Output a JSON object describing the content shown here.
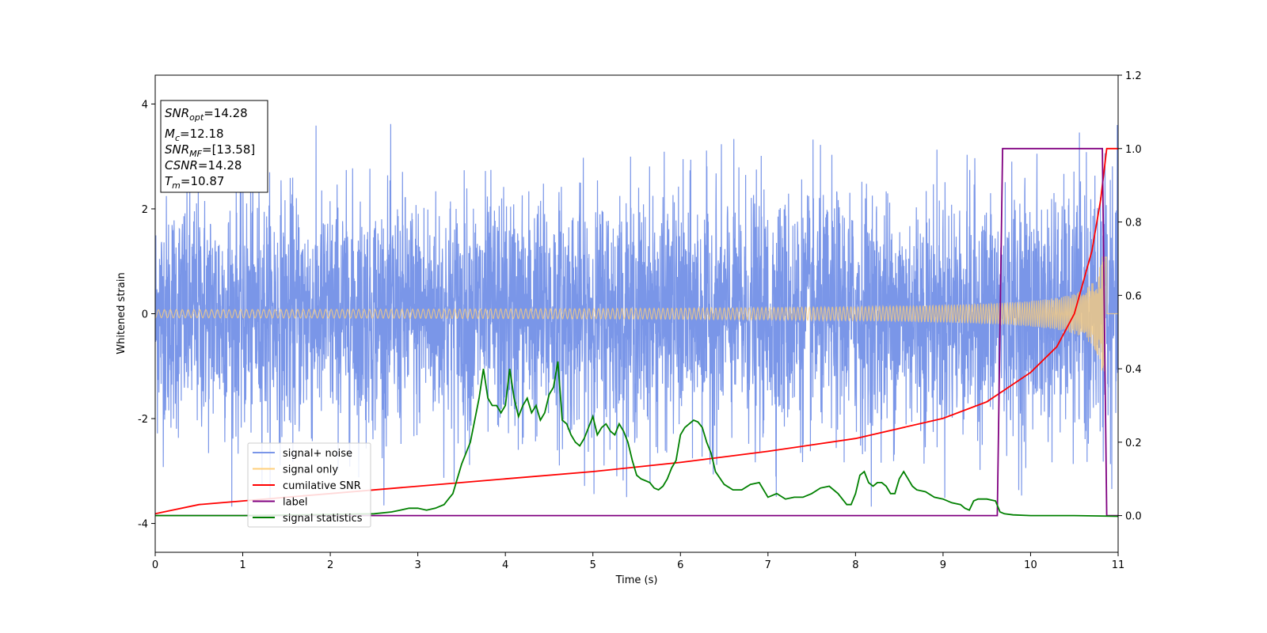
{
  "chart_data": {
    "type": "line",
    "xlabel": "Time (s)",
    "ylabel_left": "Whitened strain",
    "ylabel_right": "",
    "xlim": [
      0,
      11
    ],
    "ylim_left": [
      -4.55,
      4.55
    ],
    "ylim_right": [
      -0.1,
      1.2
    ],
    "x_ticks": [
      0,
      1,
      2,
      3,
      4,
      5,
      6,
      7,
      8,
      9,
      10,
      11
    ],
    "y_left_ticks": [
      -4,
      -2,
      0,
      2,
      4
    ],
    "y_right_ticks": [
      "0.0",
      "0.2",
      "0.4",
      "0.6",
      "0.8",
      "1.0",
      "1.2"
    ],
    "grid": false,
    "legend_position": "lower-left",
    "legend": [
      {
        "label": "signal+ noise",
        "color": "#7a96e8"
      },
      {
        "label": "signal only",
        "color": "#ffcf7a"
      },
      {
        "label": "cumilative SNR",
        "color": "#ff0000"
      },
      {
        "label": "label",
        "color": "#800080"
      },
      {
        "label": "signal statistics",
        "color": "#008000"
      }
    ],
    "annotation": {
      "snr_opt": {
        "base": "SNR",
        "sub": "opt",
        "value": "=14.28"
      },
      "mc": {
        "base": "M",
        "sub": "c",
        "value": "=12.18"
      },
      "snr_mf": {
        "base": "SNR",
        "sub": "MF",
        "value": "=[13.58]"
      },
      "csnr": {
        "base": "CSNR",
        "value": "=14.28"
      },
      "tm": {
        "base": "T",
        "sub": "m",
        "value": "=10.87"
      }
    },
    "series": [
      {
        "name": "signal+ noise",
        "axis": "left",
        "description": "noise band",
        "envelope": {
          "typical": 1.5,
          "peak": 3.6
        }
      },
      {
        "name": "signal only",
        "axis": "left",
        "description": "chirp",
        "amplitude_start": 0.03,
        "amplitude_end": 1.1,
        "merger_time": 10.87
      },
      {
        "name": "cumilative SNR",
        "axis": "right",
        "x": [
          0,
          0.5,
          1,
          2,
          3,
          4,
          5,
          6,
          7,
          8,
          9,
          9.5,
          10,
          10.3,
          10.5,
          10.7,
          10.8,
          10.87,
          11
        ],
        "y": [
          0.005,
          0.03,
          0.04,
          0.06,
          0.08,
          0.1,
          0.12,
          0.145,
          0.175,
          0.21,
          0.265,
          0.31,
          0.39,
          0.46,
          0.55,
          0.72,
          0.86,
          1.0,
          1.0
        ]
      },
      {
        "name": "label",
        "axis": "right",
        "x": [
          0,
          9.62,
          9.68,
          10.82,
          10.87,
          11
        ],
        "y": [
          0,
          0,
          1,
          1,
          0,
          0
        ]
      },
      {
        "name": "signal statistics",
        "axis": "right",
        "x": [
          0,
          1,
          2,
          2.5,
          2.7,
          2.8,
          2.9,
          3.0,
          3.1,
          3.2,
          3.3,
          3.35,
          3.4,
          3.45,
          3.5,
          3.6,
          3.7,
          3.75,
          3.8,
          3.85,
          3.9,
          3.95,
          4.0,
          4.05,
          4.1,
          4.15,
          4.2,
          4.25,
          4.3,
          4.35,
          4.4,
          4.45,
          4.5,
          4.55,
          4.6,
          4.65,
          4.7,
          4.75,
          4.8,
          4.85,
          4.9,
          4.95,
          5.0,
          5.05,
          5.1,
          5.15,
          5.2,
          5.25,
          5.3,
          5.35,
          5.4,
          5.45,
          5.5,
          5.55,
          5.6,
          5.65,
          5.7,
          5.75,
          5.8,
          5.85,
          5.9,
          5.95,
          6.0,
          6.05,
          6.1,
          6.15,
          6.2,
          6.25,
          6.3,
          6.35,
          6.4,
          6.5,
          6.6,
          6.7,
          6.8,
          6.9,
          7.0,
          7.1,
          7.2,
          7.3,
          7.4,
          7.5,
          7.6,
          7.7,
          7.8,
          7.9,
          7.95,
          8.0,
          8.05,
          8.1,
          8.15,
          8.2,
          8.25,
          8.3,
          8.35,
          8.4,
          8.45,
          8.5,
          8.55,
          8.6,
          8.65,
          8.7,
          8.8,
          8.9,
          9.0,
          9.1,
          9.2,
          9.25,
          9.3,
          9.35,
          9.4,
          9.5,
          9.6,
          9.65,
          9.7,
          9.8,
          10,
          10.5,
          11
        ],
        "y": [
          0,
          0,
          0.003,
          0.005,
          0.01,
          0.015,
          0.02,
          0.02,
          0.015,
          0.02,
          0.03,
          0.045,
          0.06,
          0.1,
          0.14,
          0.2,
          0.32,
          0.4,
          0.32,
          0.3,
          0.3,
          0.28,
          0.3,
          0.4,
          0.32,
          0.27,
          0.3,
          0.32,
          0.28,
          0.3,
          0.26,
          0.28,
          0.33,
          0.35,
          0.42,
          0.26,
          0.25,
          0.22,
          0.2,
          0.19,
          0.21,
          0.24,
          0.27,
          0.22,
          0.24,
          0.25,
          0.23,
          0.22,
          0.25,
          0.23,
          0.2,
          0.15,
          0.11,
          0.1,
          0.095,
          0.09,
          0.075,
          0.07,
          0.08,
          0.1,
          0.13,
          0.15,
          0.22,
          0.24,
          0.25,
          0.26,
          0.255,
          0.24,
          0.2,
          0.17,
          0.12,
          0.085,
          0.07,
          0.07,
          0.085,
          0.09,
          0.05,
          0.06,
          0.045,
          0.05,
          0.05,
          0.06,
          0.075,
          0.08,
          0.06,
          0.03,
          0.03,
          0.06,
          0.11,
          0.12,
          0.09,
          0.08,
          0.09,
          0.09,
          0.08,
          0.06,
          0.06,
          0.1,
          0.12,
          0.1,
          0.08,
          0.07,
          0.065,
          0.05,
          0.045,
          0.035,
          0.03,
          0.02,
          0.015,
          0.04,
          0.045,
          0.045,
          0.04,
          0.01,
          0.005,
          0.002,
          0.0,
          0.0,
          -0.002
        ]
      }
    ]
  }
}
